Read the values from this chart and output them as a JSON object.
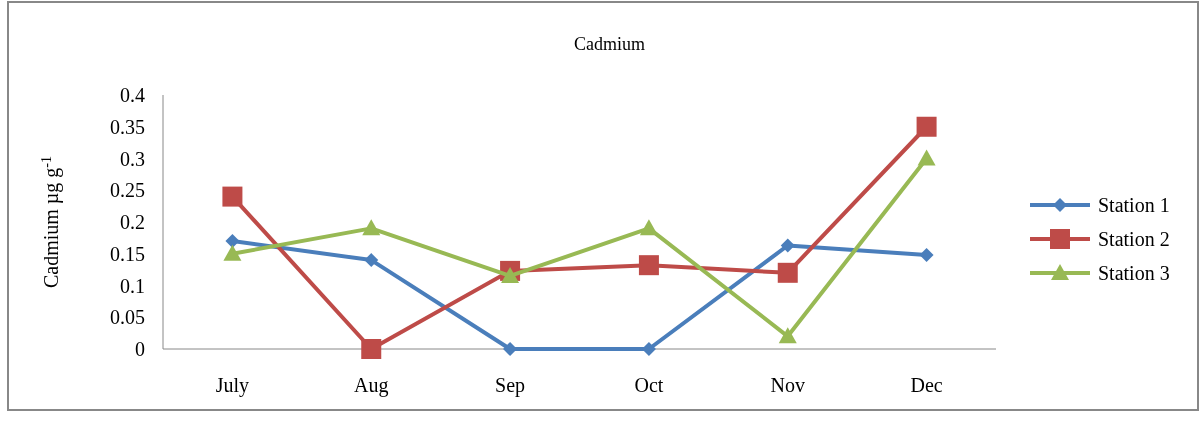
{
  "chart_data": {
    "type": "line",
    "title": "Cadmium",
    "ylabel": "Cadmium µg g$^{-1}$",
    "categories": [
      "July",
      "Aug",
      "Sep",
      "Oct",
      "Nov",
      "Dec"
    ],
    "series": [
      {
        "name": "Station 1",
        "color": "#4a7ebb",
        "marker": "diamond",
        "values": [
          0.17,
          0.14,
          0,
          0,
          0.163,
          0.148
        ]
      },
      {
        "name": "Station 2",
        "color": "#be4b48",
        "marker": "square",
        "values": [
          0.24,
          0,
          0.123,
          0.132,
          0.12,
          0.35
        ]
      },
      {
        "name": "Station 3",
        "color": "#98b954",
        "marker": "triangle",
        "values": [
          0.15,
          0.19,
          0.115,
          0.19,
          0.02,
          0.3
        ]
      }
    ],
    "ylim": [
      0,
      0.4
    ],
    "yticks": [
      0,
      0.05,
      0.1,
      0.15,
      0.2,
      0.25,
      0.3,
      0.35,
      0.4
    ],
    "grid": false,
    "legend": "right"
  }
}
